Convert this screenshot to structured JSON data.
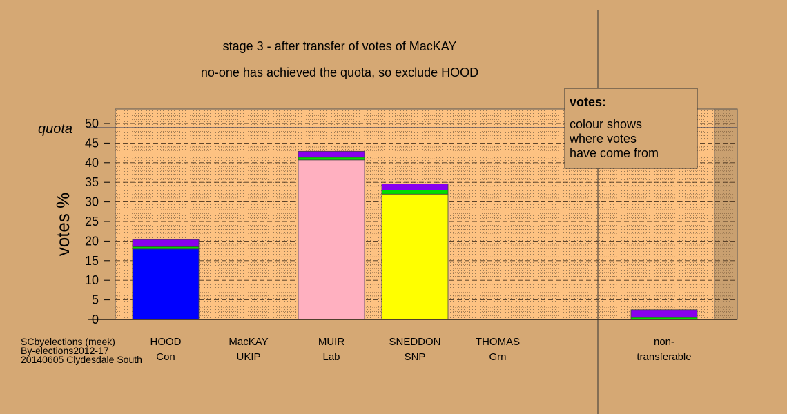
{
  "chart_data": {
    "type": "bar",
    "stacked": true,
    "title": "stage 3 - after transfer of votes of MacKAY",
    "subtitle": "no-one has achieved the quota, so exclude HOOD",
    "ylabel": "votes %",
    "ylim": [
      0,
      53
    ],
    "yticks": [
      0,
      5,
      10,
      15,
      20,
      25,
      30,
      35,
      40,
      45,
      50
    ],
    "quota": {
      "label": "quota",
      "value": 48.9,
      "color": "#2d3558"
    },
    "categories": [
      {
        "name": "HOOD",
        "party": "Con"
      },
      {
        "name": "MacKAY",
        "party": "UKIP"
      },
      {
        "name": "MUIR",
        "party": "Lab"
      },
      {
        "name": "SNEDDON",
        "party": "SNP"
      },
      {
        "name": "THOMAS",
        "party": "Grn"
      },
      {
        "name": "non-",
        "party": "transferable"
      }
    ],
    "series": [
      {
        "key": "own",
        "colors": [
          "#0000ff",
          null,
          "#ffb0c0",
          "#ffff00",
          null,
          null
        ],
        "values": [
          18.0,
          0,
          40.7,
          32.0,
          0,
          0
        ]
      },
      {
        "key": "from Grn",
        "color": "#00dd00",
        "values": [
          0.6,
          0,
          0.7,
          1.0,
          0,
          0.5
        ]
      },
      {
        "key": "from UKIP",
        "color": "#8800ee",
        "values": [
          1.8,
          0,
          1.5,
          1.6,
          0,
          2.0
        ]
      }
    ],
    "legend": {
      "title": "votes:",
      "lines": [
        "colour shows",
        "where votes",
        "have come from"
      ],
      "position": "top-right"
    },
    "grid": true
  },
  "footer": {
    "line1": "SCbyelections (meek)",
    "line2": "By-elections2012-17",
    "line3": "20140605 Clydesdale South"
  }
}
